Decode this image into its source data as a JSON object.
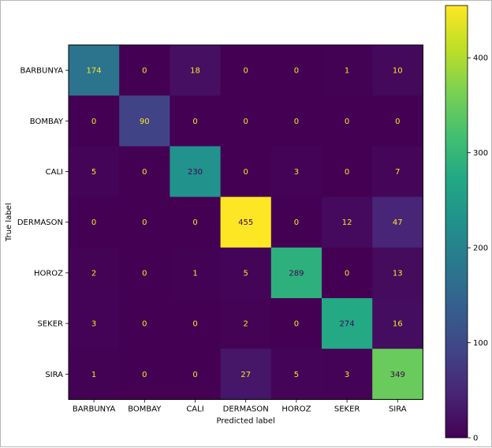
{
  "chart_data": {
    "type": "heatmap",
    "title": "",
    "xlabel": "Predicted label",
    "ylabel": "True label",
    "x_categories": [
      "BARBUNYA",
      "BOMBAY",
      "CALI",
      "DERMASON",
      "HOROZ",
      "SEKER",
      "SIRA"
    ],
    "y_categories": [
      "BARBUNYA",
      "BOMBAY",
      "CALI",
      "DERMASON",
      "HOROZ",
      "SEKER",
      "SIRA"
    ],
    "values": [
      [
        174,
        0,
        18,
        0,
        0,
        1,
        10
      ],
      [
        0,
        90,
        0,
        0,
        0,
        0,
        0
      ],
      [
        5,
        0,
        230,
        0,
        3,
        0,
        7
      ],
      [
        0,
        0,
        0,
        455,
        0,
        12,
        47
      ],
      [
        2,
        0,
        1,
        5,
        289,
        0,
        13
      ],
      [
        3,
        0,
        0,
        2,
        0,
        274,
        16
      ],
      [
        1,
        0,
        0,
        27,
        5,
        3,
        349
      ]
    ],
    "colormap": "viridis",
    "value_range": [
      0,
      455
    ],
    "text_colors": {
      "low": "#fde725",
      "high": "#440154"
    },
    "colorbar": {
      "ticks": [
        0,
        100,
        200,
        300,
        400
      ],
      "tick_labels": [
        "0",
        "100",
        "200",
        "300",
        "400"
      ]
    },
    "grid": false
  }
}
